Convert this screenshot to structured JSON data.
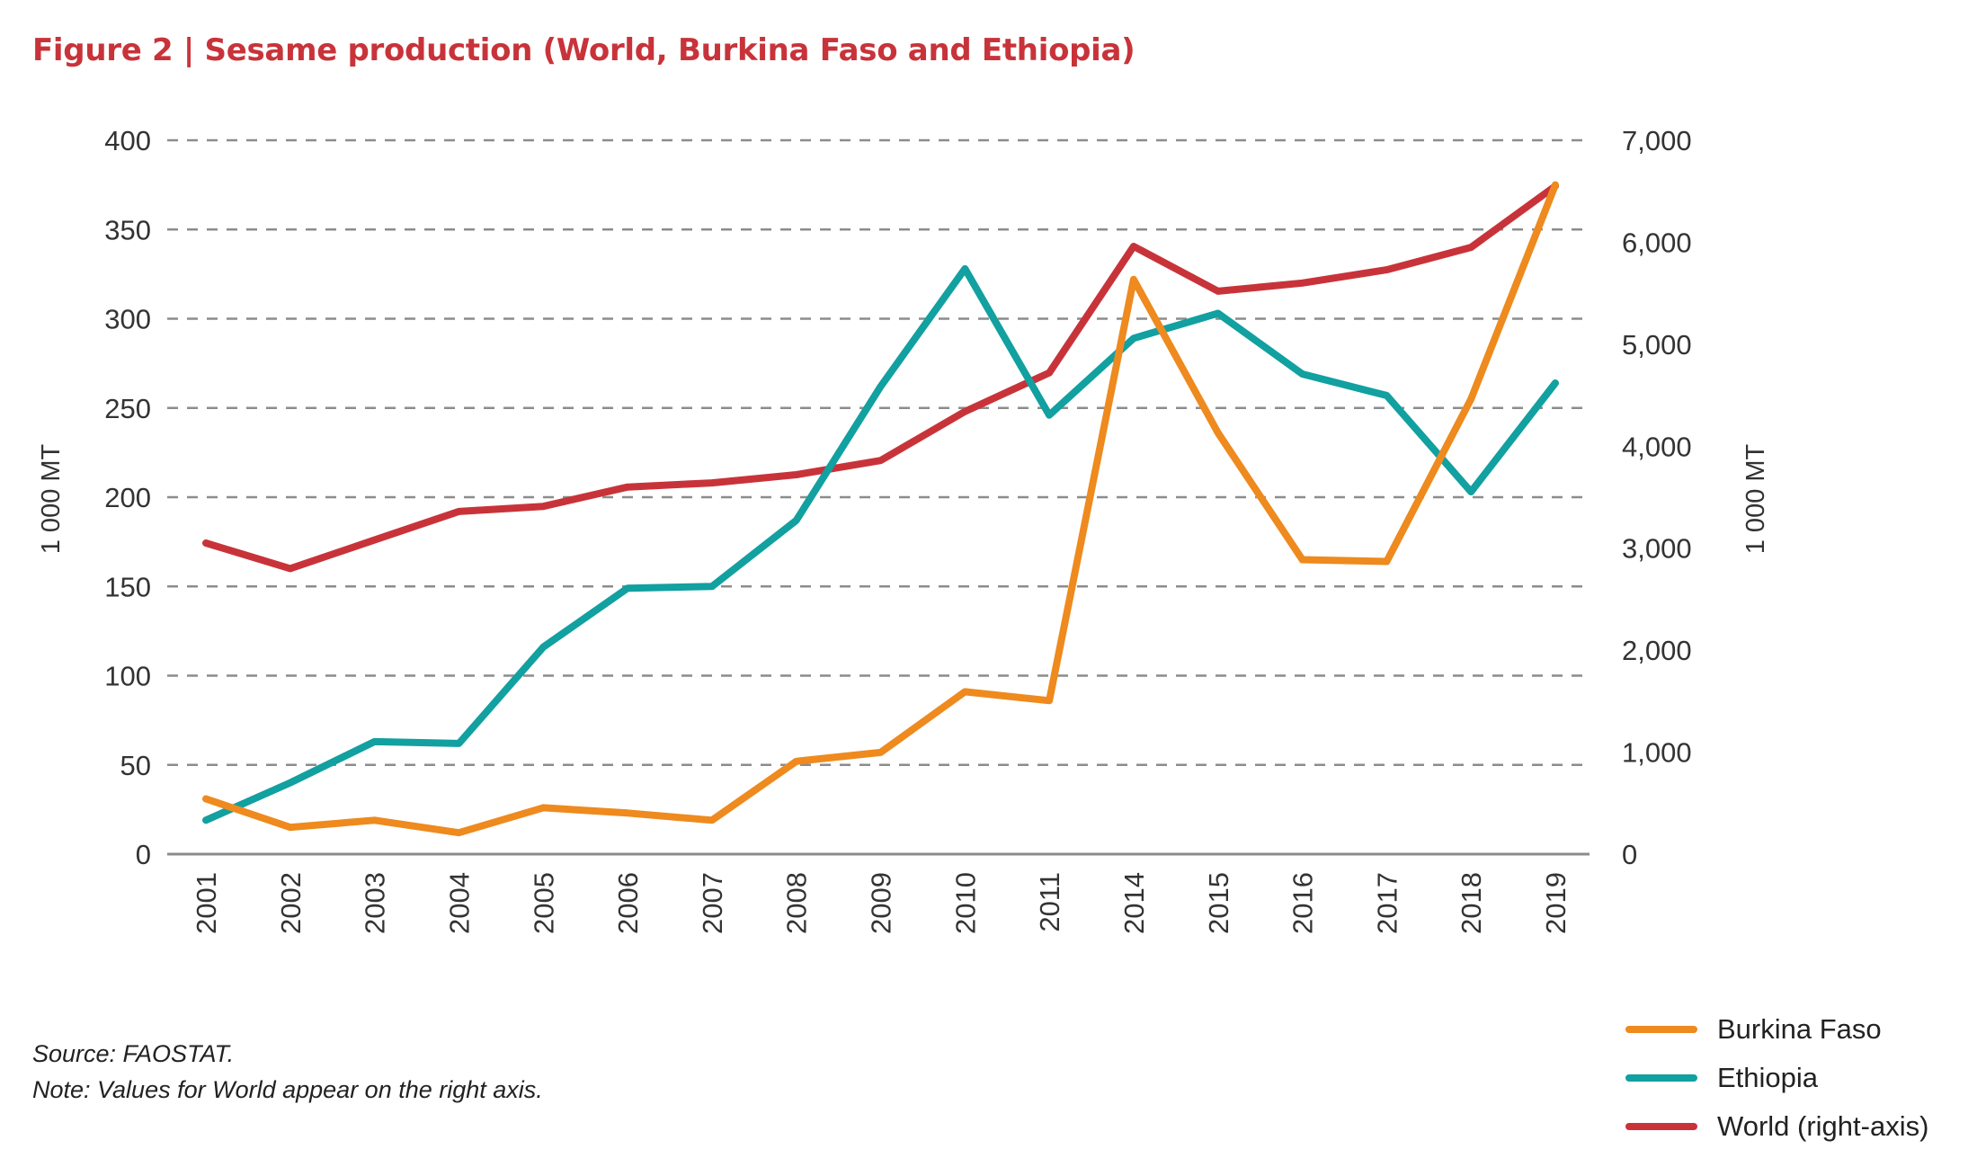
{
  "title": "Figure 2 | Sesame production (World, Burkina Faso and Ethiopia)",
  "source": "Source: FAOSTAT.",
  "note": "Note: Values for World appear on the right axis.",
  "colors": {
    "title": "#C8333A",
    "burkina": "#EE8A1E",
    "ethiopia": "#12A0A0",
    "world": "#C8333A",
    "grid": "#8c8c8c"
  },
  "chart_data": {
    "type": "line",
    "title": "Figure 2 | Sesame production (World, Burkina Faso and Ethiopia)",
    "ylabel": "1 000 MT",
    "y2label": "1 000 MT",
    "ylim": [
      0,
      400
    ],
    "y2lim": [
      0,
      7000
    ],
    "yticks": [
      "0",
      "50",
      "100",
      "150",
      "200",
      "250",
      "300",
      "350",
      "400"
    ],
    "y2ticks": [
      "0",
      "1,000",
      "2,000",
      "3,000",
      "4,000",
      "5,000",
      "6,000",
      "7,000"
    ],
    "grid": "horizontal dashed",
    "legend_position": "bottom-right",
    "categories": [
      "2001",
      "2002",
      "2003",
      "2004",
      "2005",
      "2006",
      "2007",
      "2008",
      "2009",
      "2010",
      "2011",
      "2014",
      "2015",
      "2016",
      "2017",
      "2018",
      "2019"
    ],
    "series": [
      {
        "name": "Burkina Faso",
        "axis": "left",
        "values": [
          31,
          15,
          19,
          12,
          26,
          23,
          19,
          52,
          57,
          91,
          86,
          322,
          236,
          165,
          164,
          255,
          375
        ]
      },
      {
        "name": "Ethiopia",
        "axis": "left",
        "values": [
          19,
          40,
          63,
          62,
          116,
          149,
          150,
          187,
          262,
          328,
          246,
          289,
          303,
          269,
          257,
          203,
          264
        ]
      },
      {
        "name": "World (right-axis)",
        "axis": "right",
        "values": [
          3050,
          2800,
          3080,
          3360,
          3410,
          3600,
          3640,
          3720,
          3860,
          4340,
          4720,
          5960,
          5520,
          5600,
          5730,
          5950,
          6550
        ]
      }
    ]
  }
}
